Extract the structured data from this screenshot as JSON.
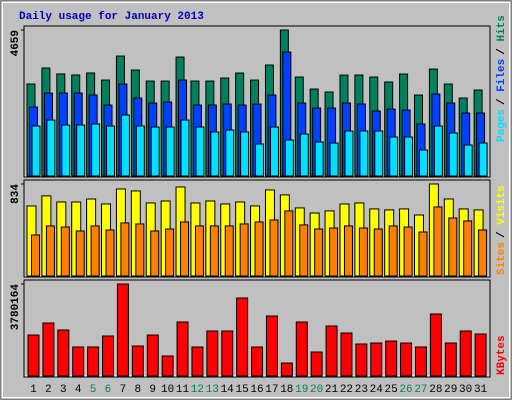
{
  "title": "Daily usage for January 2013",
  "legend_separator": "/",
  "chart_data": [
    {
      "type": "bar",
      "ylim": [
        0,
        4659
      ],
      "yticks": [
        4659
      ],
      "series": [
        {
          "name": "Hits",
          "color": "#00805c",
          "values": [
            2935,
            3447,
            3256,
            3224,
            3288,
            3062,
            3828,
            3381,
            3030,
            3030,
            3796,
            3030,
            3030,
            3126,
            3286,
            3062,
            3541,
            4659,
            3158,
            2775,
            2680,
            3222,
            3222,
            3158,
            2999,
            3254,
            2584,
            3413,
            2935,
            2488,
            2743
          ]
        },
        {
          "name": "Files",
          "color": "#0040ff",
          "values": [
            2201,
            2648,
            2648,
            2648,
            2584,
            2265,
            2935,
            2488,
            2329,
            2361,
            3062,
            2265,
            2265,
            2297,
            2265,
            2297,
            2584,
            3956,
            2329,
            2169,
            2169,
            2329,
            2297,
            2074,
            2137,
            2105,
            1659,
            2616,
            2329,
            2010,
            2010
          ]
        },
        {
          "name": "Pages",
          "color": "#00e0ff",
          "values": [
            1595,
            1786,
            1627,
            1627,
            1659,
            1595,
            1946,
            1595,
            1563,
            1563,
            1786,
            1563,
            1404,
            1467,
            1404,
            1021,
            1563,
            1148,
            1340,
            1085,
            1053,
            1436,
            1436,
            1436,
            1244,
            1244,
            829,
            1595,
            1372,
            989,
            1053
          ]
        }
      ]
    },
    {
      "type": "bar",
      "ylim": [
        0,
        834
      ],
      "yticks": [
        834
      ],
      "series": [
        {
          "name": "Visits",
          "color": "#ffff00",
          "values": [
            635,
            726,
            671,
            671,
            698,
            653,
            789,
            771,
            662,
            680,
            807,
            662,
            680,
            653,
            671,
            635,
            780,
            735,
            617,
            571,
            590,
            653,
            662,
            608,
            599,
            608,
            553,
            834,
            698,
            608,
            599
          ]
        },
        {
          "name": "Sites",
          "color": "#ff8000",
          "values": [
            372,
            454,
            444,
            408,
            454,
            417,
            481,
            472,
            408,
            426,
            490,
            454,
            454,
            454,
            472,
            490,
            508,
            590,
            463,
            426,
            435,
            454,
            435,
            426,
            454,
            444,
            399,
            626,
            526,
            499,
            417
          ]
        }
      ]
    },
    {
      "type": "bar",
      "ylim": [
        0,
        3780164
      ],
      "yticks": [
        3780164
      ],
      "categories": [
        "1",
        "2",
        "3",
        "4",
        "5",
        "6",
        "7",
        "8",
        "9",
        "10",
        "11",
        "12",
        "13",
        "14",
        "15",
        "16",
        "17",
        "18",
        "19",
        "20",
        "21",
        "22",
        "23",
        "24",
        "25",
        "26",
        "27",
        "28",
        "29",
        "30",
        "31"
      ],
      "category_colors": [
        "#000000",
        "#000000",
        "#000000",
        "#000000",
        "#00805c",
        "#00805c",
        "#000000",
        "#000000",
        "#000000",
        "#000000",
        "#000000",
        "#00805c",
        "#00805c",
        "#000000",
        "#000000",
        "#000000",
        "#000000",
        "#000000",
        "#00805c",
        "#00805c",
        "#000000",
        "#000000",
        "#000000",
        "#000000",
        "#000000",
        "#00805c",
        "#00805c",
        "#000000",
        "#000000",
        "#000000",
        "#000000"
      ],
      "series": [
        {
          "name": "KBytes",
          "color": "#ff0000",
          "values": [
            1684649,
            2177717,
            1890094,
            1191581,
            1191581,
            1643560,
            3780164,
            1232670,
            1684649,
            821780,
            2218806,
            1191581,
            1849005,
            1849005,
            3204942,
            1191581,
            2465340,
            534157,
            2218806,
            986136,
            2054450,
            1766827,
            1314848,
            1355937,
            1438115,
            1355937,
            1191581,
            2547518,
            1355937,
            1849005,
            1725738
          ]
        }
      ]
    }
  ]
}
